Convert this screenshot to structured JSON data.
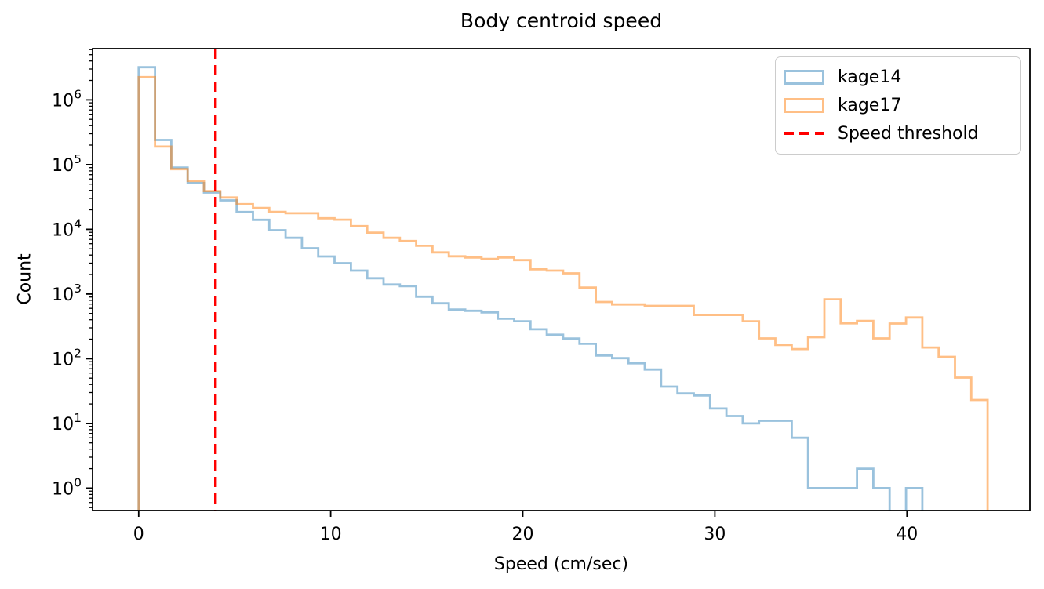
{
  "title": "Body centroid speed",
  "xlabel": "Speed (cm/sec)",
  "ylabel": "Count",
  "chart_data": {
    "type": "bar",
    "subtype": "step-histogram",
    "title": "Body centroid speed",
    "xlabel": "Speed (cm/sec)",
    "ylabel": "Count",
    "yscale": "log",
    "grid": false,
    "xlim": [
      -2.4,
      46.4
    ],
    "ylim": [
      0.45,
      6200000
    ],
    "x_ticks": [
      0,
      10,
      20,
      30,
      40
    ],
    "x_tick_labels": [
      "0",
      "10",
      "20",
      "30",
      "40"
    ],
    "y_tick_exponents": [
      0,
      1,
      2,
      3,
      4,
      5,
      6
    ],
    "bin_start": 0,
    "bin_width": 0.85,
    "series": [
      {
        "name": "kage14",
        "color": "#1f77b4",
        "alpha": 0.45,
        "values": [
          3200000,
          240000,
          90000,
          52000,
          37000,
          28000,
          18500,
          14000,
          9700,
          7400,
          5100,
          3800,
          3000,
          2300,
          1750,
          1400,
          1320,
          910,
          720,
          575,
          550,
          520,
          415,
          380,
          285,
          235,
          205,
          170,
          112,
          102,
          85,
          68,
          37,
          29,
          27,
          17,
          13,
          10,
          11,
          11,
          6,
          1,
          1,
          1,
          2,
          1,
          0,
          1
        ]
      },
      {
        "name": "kage17",
        "color": "#ff7f0e",
        "alpha": 0.5,
        "values": [
          2250000,
          190000,
          85000,
          56000,
          39000,
          31000,
          24500,
          21400,
          18600,
          17700,
          17700,
          14800,
          14100,
          11200,
          8900,
          7400,
          6600,
          5560,
          4400,
          3830,
          3660,
          3490,
          3660,
          3340,
          2410,
          2300,
          2090,
          1260,
          755,
          690,
          690,
          655,
          655,
          655,
          475,
          475,
          475,
          380,
          206,
          163,
          141,
          215,
          830,
          353,
          384,
          206,
          350,
          434,
          149,
          107,
          51,
          23
        ]
      }
    ],
    "threshold": {
      "label": "Speed threshold",
      "x": 4,
      "color": "#ff0000",
      "style": "dashed"
    },
    "legend": {
      "position": "upper right",
      "entries": [
        "kage14",
        "kage17",
        "Speed threshold"
      ]
    }
  }
}
